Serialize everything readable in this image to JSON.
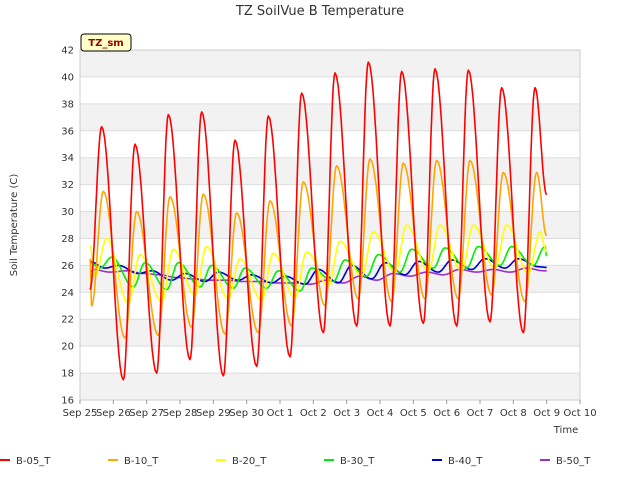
{
  "chart_data": {
    "type": "line",
    "title": "TZ SoilVue B Temperature",
    "xlabel": "Time",
    "ylabel": "Soil Temperature (C)",
    "badge": "TZ_sm",
    "ylim": [
      16,
      42
    ],
    "xlim": [
      0,
      15
    ],
    "yticks": [
      16,
      18,
      20,
      22,
      24,
      26,
      28,
      30,
      32,
      34,
      36,
      38,
      40,
      42
    ],
    "xticks": [
      "Sep 25",
      "Sep 26",
      "Sep 27",
      "Sep 28",
      "Sep 29",
      "Sep 30",
      "Oct 1",
      "Oct 2",
      "Oct 3",
      "Oct 4",
      "Oct 5",
      "Oct 6",
      "Oct 7",
      "Oct 8",
      "Oct 9",
      "Oct 10"
    ],
    "grid": true,
    "legend_position": "bottom",
    "start_day": 0.3,
    "end_day": 14.0,
    "series": [
      {
        "name": "B-05_T",
        "color": "#ff0000",
        "daily_min": [
          20.6,
          17.5,
          18.0,
          19.0,
          17.8,
          18.5,
          19.2,
          21.0,
          21.5,
          21.5,
          21.7,
          21.5,
          21.8,
          21.0,
          23.3
        ],
        "daily_max": [
          36.3,
          35.0,
          37.2,
          37.4,
          35.3,
          37.1,
          38.8,
          40.3,
          41.1,
          40.4,
          40.6,
          40.5,
          39.2,
          39.2,
          39.2
        ],
        "min_phase": 0.3,
        "max_phase": 0.65,
        "start_value": 24.2
      },
      {
        "name": "B-10_T",
        "color": "#ffa500",
        "daily_min": [
          23.0,
          20.6,
          20.8,
          21.4,
          20.9,
          21.0,
          21.5,
          23.0,
          23.5,
          23.3,
          23.5,
          23.5,
          23.8,
          23.3,
          23.5
        ],
        "daily_max": [
          31.5,
          30.0,
          31.1,
          31.3,
          29.9,
          30.8,
          32.2,
          33.4,
          33.9,
          33.6,
          33.8,
          33.8,
          32.9,
          32.9,
          32.9
        ],
        "min_phase": 0.35,
        "max_phase": 0.7,
        "start_value": 26.5
      },
      {
        "name": "B-20_T",
        "color": "#ffff00",
        "daily_min": [
          25.2,
          23.2,
          23.3,
          23.8,
          23.5,
          23.4,
          23.6,
          24.5,
          25.2,
          25.5,
          25.6,
          25.6,
          25.8,
          25.4,
          25.5
        ],
        "daily_max": [
          28.0,
          26.8,
          27.2,
          27.4,
          26.5,
          26.9,
          27.0,
          27.8,
          28.5,
          29.0,
          29.0,
          29.0,
          29.0,
          28.5,
          28.5
        ],
        "min_phase": 0.45,
        "max_phase": 0.8,
        "start_value": 27.5
      },
      {
        "name": "B-30_T",
        "color": "#00ee00",
        "daily_min": [
          25.8,
          24.4,
          24.2,
          24.4,
          24.3,
          24.3,
          24.1,
          24.8,
          25.2,
          25.5,
          25.8,
          25.8,
          26.0,
          26.0,
          26.0
        ],
        "daily_max": [
          26.6,
          26.2,
          26.2,
          26.0,
          25.8,
          25.6,
          25.8,
          26.4,
          26.8,
          27.2,
          27.3,
          27.4,
          27.4,
          27.4,
          27.3
        ],
        "min_phase": 0.6,
        "max_phase": 0.95,
        "start_value": 26.2
      },
      {
        "name": "B-40_T",
        "color": "#0000cc",
        "daily_min": [
          25.8,
          25.4,
          24.9,
          24.8,
          24.9,
          24.7,
          24.6,
          24.7,
          25.0,
          25.3,
          25.5,
          25.7,
          25.8,
          25.9,
          25.8
        ],
        "daily_max": [
          26.4,
          26.0,
          25.6,
          25.4,
          25.5,
          25.3,
          25.2,
          25.7,
          26.0,
          26.2,
          26.3,
          26.4,
          26.5,
          26.5,
          26.4
        ],
        "min_phase": 0.75,
        "max_phase": 0.15,
        "start_value": 26.3
      },
      {
        "name": "B-50_T",
        "color": "#9932cc",
        "daily_min": [
          25.5,
          25.4,
          25.1,
          24.9,
          24.8,
          24.7,
          24.6,
          24.7,
          24.9,
          25.2,
          25.3,
          25.5,
          25.5,
          25.6,
          25.6
        ],
        "daily_max": [
          25.7,
          25.6,
          25.3,
          25.0,
          24.9,
          24.8,
          24.7,
          24.9,
          25.2,
          25.4,
          25.5,
          25.7,
          25.7,
          25.8,
          25.7
        ],
        "min_phase": 0.9,
        "max_phase": 0.4,
        "start_value": 25.5
      }
    ]
  }
}
